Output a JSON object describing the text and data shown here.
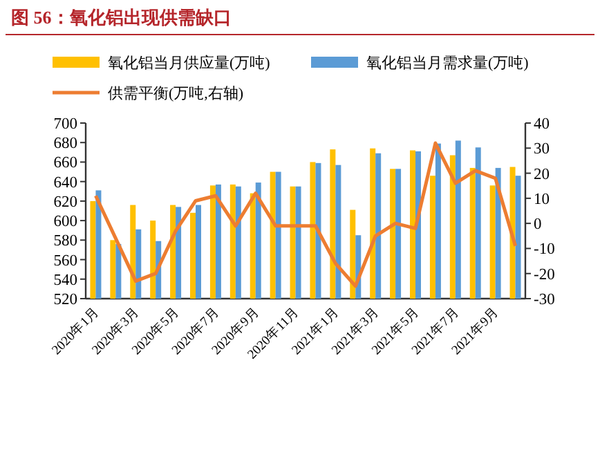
{
  "chart_data": {
    "type": "bar",
    "title": "图 56：氧化铝出现供需缺口",
    "categories": [
      "2020年1月",
      null,
      "2020年3月",
      null,
      "2020年5月",
      null,
      "2020年7月",
      null,
      "2020年9月",
      null,
      "2020年11月",
      null,
      "2021年1月",
      null,
      "2021年3月",
      null,
      "2021年5月",
      null,
      "2021年7月",
      null,
      "2021年9月",
      null
    ],
    "series": [
      {
        "name": "氧化铝当月供应量(万吨)",
        "color": "#ffc000",
        "values": [
          620,
          580,
          616,
          600,
          616,
          608,
          636,
          637,
          628,
          650,
          635,
          660,
          673,
          611,
          674,
          653,
          672,
          646,
          667,
          654,
          636,
          655
        ]
      },
      {
        "name": "氧化铝当月需求量(万吨)",
        "color": "#5b9bd5",
        "values": [
          631,
          576,
          591,
          579,
          614,
          616,
          637,
          635,
          639,
          650,
          635,
          659,
          657,
          585,
          669,
          653,
          671,
          679,
          682,
          675,
          654,
          646
        ]
      },
      {
        "name": "供需平衡(万吨,右轴)",
        "color": "#ed7d31",
        "type": "line",
        "axis": "y2",
        "values": [
          11,
          -6,
          -23,
          -20,
          -3,
          9,
          11,
          -1,
          12,
          -1,
          -1,
          -1,
          -16,
          -25,
          -5,
          0,
          -2,
          32,
          16,
          21,
          18,
          -9
        ]
      }
    ],
    "ylim": [
      520,
      700
    ],
    "yticks": [
      520,
      540,
      560,
      580,
      600,
      620,
      640,
      660,
      680,
      700
    ],
    "y2lim": [
      -30,
      40
    ],
    "y2ticks": [
      -30,
      -20,
      -10,
      0,
      10,
      20,
      30,
      40
    ],
    "legend": "top"
  }
}
